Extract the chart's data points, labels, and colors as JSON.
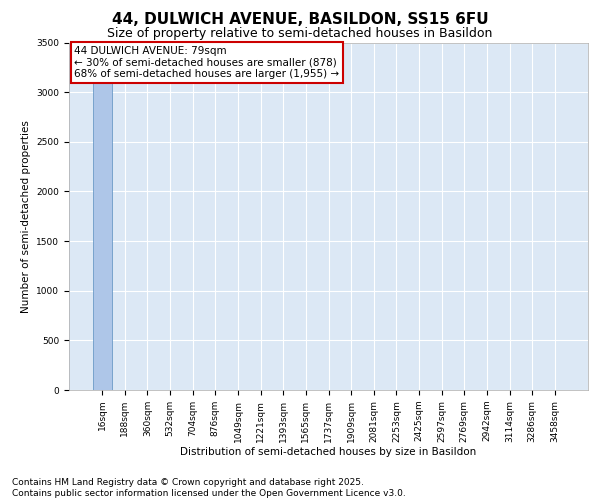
{
  "title_line1": "44, DULWICH AVENUE, BASILDON, SS15 6FU",
  "title_line2": "Size of property relative to semi-detached houses in Basildon",
  "xlabel": "Distribution of semi-detached houses by size in Basildon",
  "ylabel": "Number of semi-detached properties",
  "categories": [
    "16sqm",
    "188sqm",
    "360sqm",
    "532sqm",
    "704sqm",
    "876sqm",
    "1049sqm",
    "1221sqm",
    "1393sqm",
    "1565sqm",
    "1737sqm",
    "1909sqm",
    "2081sqm",
    "2253sqm",
    "2425sqm",
    "2597sqm",
    "2769sqm",
    "2942sqm",
    "3114sqm",
    "3286sqm",
    "3458sqm"
  ],
  "values": [
    3311,
    2,
    1,
    0,
    0,
    0,
    0,
    0,
    0,
    0,
    0,
    0,
    0,
    0,
    0,
    0,
    0,
    0,
    0,
    0,
    0
  ],
  "bar_color": "#aec6e8",
  "bar_edge_color": "#5a8fc0",
  "ylim": [
    0,
    3500
  ],
  "yticks": [
    0,
    500,
    1000,
    1500,
    2000,
    2500,
    3000,
    3500
  ],
  "annotation_text": "44 DULWICH AVENUE: 79sqm\n← 30% of semi-detached houses are smaller (878)\n68% of semi-detached houses are larger (1,955) →",
  "annotation_box_color": "#cc0000",
  "highlight_bar_index": 0,
  "background_color": "#dce8f5",
  "footer_text": "Contains HM Land Registry data © Crown copyright and database right 2025.\nContains public sector information licensed under the Open Government Licence v3.0.",
  "title_fontsize": 11,
  "subtitle_fontsize": 9,
  "annotation_fontsize": 7.5,
  "footer_fontsize": 6.5,
  "ylabel_fontsize": 7.5,
  "xlabel_fontsize": 7.5,
  "tick_fontsize": 6.5
}
